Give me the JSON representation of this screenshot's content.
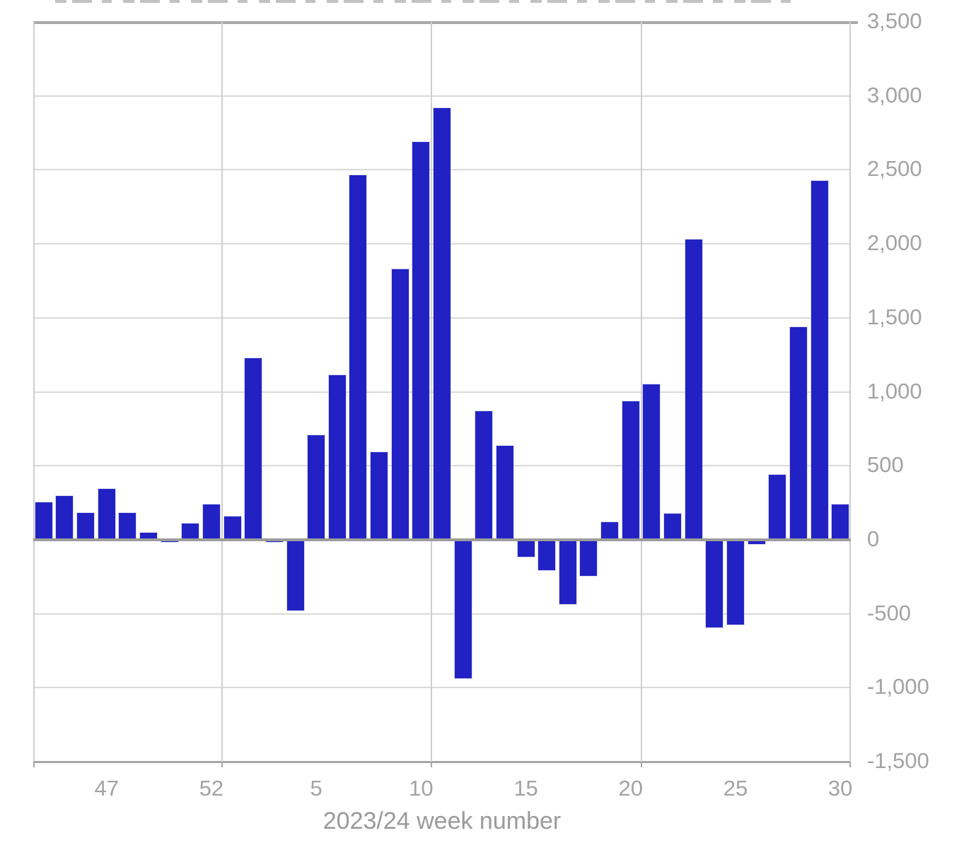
{
  "chart_data": {
    "type": "bar",
    "title": "",
    "xlabel": "2023/24 week number",
    "ylabel": "",
    "ylim": [
      -1500,
      3500
    ],
    "ytick_step": 500,
    "ytick_labels": [
      "3,500",
      "3,000",
      "2,500",
      "2,000",
      "1,500",
      "1,000",
      "500",
      "0",
      "-500",
      "-1,000",
      "-1,500"
    ],
    "legend_position": "none",
    "grid": true,
    "value_axis_side": "right",
    "bar_color": "#2222c4",
    "categories": [
      44,
      45,
      46,
      47,
      48,
      49,
      50,
      51,
      52,
      1,
      2,
      3,
      4,
      5,
      6,
      7,
      8,
      9,
      10,
      11,
      12,
      13,
      14,
      15,
      16,
      17,
      18,
      19,
      20,
      21,
      22,
      23,
      24,
      25,
      26,
      27,
      28,
      29,
      30
    ],
    "values": [
      255,
      295,
      180,
      345,
      180,
      45,
      -15,
      110,
      240,
      155,
      1225,
      -15,
      -480,
      705,
      1110,
      2465,
      590,
      1830,
      2690,
      2915,
      -935,
      870,
      635,
      -115,
      -205,
      -435,
      -245,
      120,
      935,
      1050,
      175,
      2030,
      -595,
      -575,
      -30,
      440,
      1435,
      2425,
      240
    ],
    "xtick_labels": [
      "47",
      "52",
      "5",
      "10",
      "15",
      "20",
      "25",
      "30"
    ],
    "xtick_indices": [
      3,
      8,
      13,
      18,
      23,
      28,
      33,
      38
    ],
    "vgrid_slot_boundaries": [
      9,
      19,
      29
    ]
  }
}
